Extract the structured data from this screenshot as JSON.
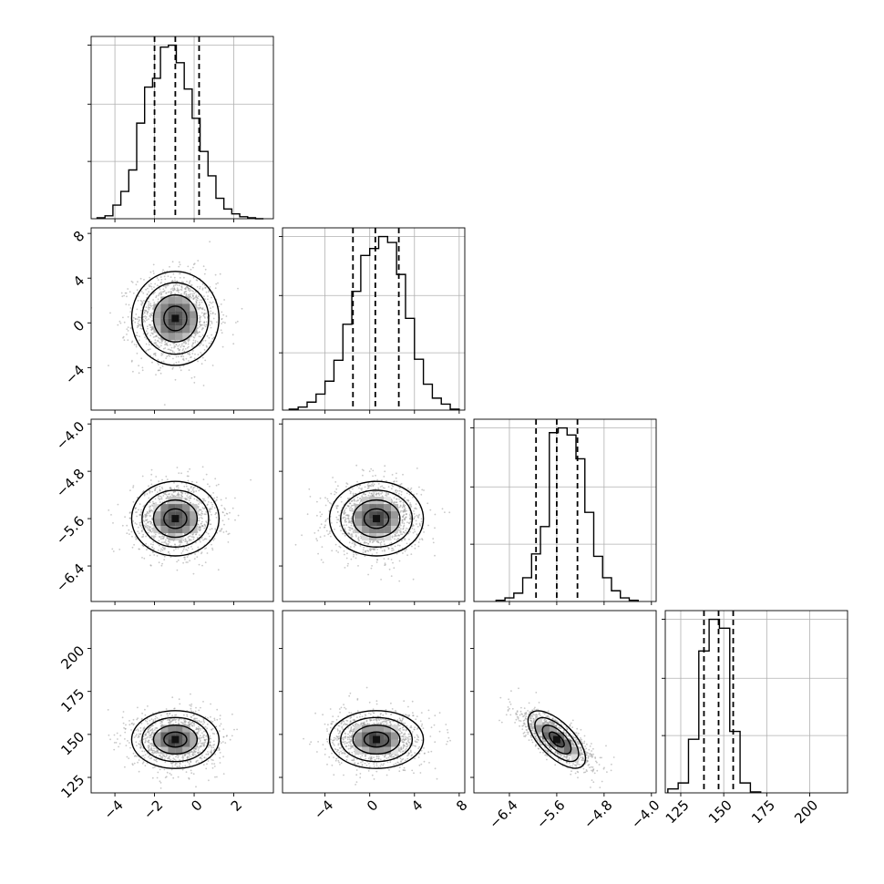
{
  "chart_data": [
    {
      "type": "histogram",
      "panel": "diag-0",
      "xlim": [
        -5.2,
        4.0
      ],
      "xticks": [
        -4,
        -2,
        0,
        2
      ],
      "x": [
        -4.7,
        -4.3,
        -3.9,
        -3.5,
        -3.1,
        -2.7,
        -2.3,
        -1.9,
        -1.5,
        -1.1,
        -0.7,
        -0.3,
        0.1,
        0.5,
        0.9,
        1.3,
        1.7,
        2.1,
        2.5,
        2.9,
        3.3
      ],
      "values": [
        1,
        3,
        14,
        28,
        50,
        98,
        135,
        144,
        176,
        178,
        160,
        133,
        103,
        69,
        44,
        21,
        10,
        5,
        2,
        1,
        0
      ],
      "quantiles": [
        -2.0,
        -0.95,
        0.25
      ],
      "grid": true
    },
    {
      "type": "histogram",
      "panel": "diag-1",
      "xlim": [
        -7.8,
        8.5
      ],
      "xticks": [
        -4,
        0,
        4,
        8
      ],
      "x": [
        -6.8,
        -6.0,
        -5.2,
        -4.4,
        -3.6,
        -2.8,
        -2.0,
        -1.2,
        -0.4,
        0.4,
        1.2,
        2.0,
        2.8,
        3.6,
        4.4,
        5.2,
        6.0,
        6.8,
        7.6
      ],
      "values": [
        1,
        3,
        8,
        16,
        29,
        50,
        86,
        119,
        155,
        162,
        174,
        168,
        136,
        92,
        51,
        26,
        12,
        6,
        1
      ],
      "quantiles": [
        -1.5,
        0.5,
        2.6
      ],
      "grid": true
    },
    {
      "type": "histogram",
      "panel": "diag-2",
      "xlim": [
        -7.0,
        -3.92
      ],
      "xticks": [
        -6.4,
        -5.6,
        -4.8,
        -4.0
      ],
      "x": [
        -6.55,
        -6.4,
        -6.25,
        -6.1,
        -5.95,
        -5.8,
        -5.65,
        -5.5,
        -5.35,
        -5.2,
        -5.05,
        -4.9,
        -4.75,
        -4.6,
        -4.45,
        -4.3
      ],
      "values": [
        1,
        3,
        7,
        20,
        40,
        63,
        142,
        146,
        140,
        120,
        75,
        38,
        20,
        9,
        3,
        1
      ],
      "quantiles": [
        -5.95,
        -5.6,
        -5.25
      ],
      "grid": true
    },
    {
      "type": "histogram",
      "panel": "diag-3",
      "xlim": [
        116,
        222
      ],
      "xticks": [
        125,
        150,
        175,
        200
      ],
      "x": [
        120.5,
        126.5,
        132.5,
        138.5,
        144.5,
        150.5,
        156.5,
        162.5,
        168.5
      ],
      "values": [
        4,
        10,
        54,
        143,
        175,
        166,
        62,
        10,
        1
      ],
      "quantiles": [
        138.5,
        147,
        155.5
      ],
      "grid": true
    },
    {
      "type": "scatter",
      "panel": "r1c0",
      "x_param": 0,
      "y_param": 1,
      "xlim": [
        -5.2,
        4.0
      ],
      "ylim": [
        -7.8,
        8.5
      ],
      "center": [
        -0.95,
        0.4
      ],
      "spread": [
        1.05,
        2.0
      ],
      "correlation": 0.0,
      "yticks": [
        -4,
        0,
        4,
        8
      ]
    },
    {
      "type": "scatter",
      "panel": "r2c0",
      "x_param": 0,
      "y_param": 2,
      "xlim": [
        -5.2,
        4.0
      ],
      "ylim": [
        -7.0,
        -3.92
      ],
      "center": [
        -0.95,
        -5.6
      ],
      "spread": [
        1.05,
        0.3
      ],
      "correlation": 0.0,
      "yticks": [
        -6.4,
        -5.6,
        -4.8,
        -4.0
      ]
    },
    {
      "type": "scatter",
      "panel": "r2c1",
      "x_param": 1,
      "y_param": 2,
      "xlim": [
        -7.8,
        8.5
      ],
      "ylim": [
        -7.0,
        -3.92
      ],
      "center": [
        0.6,
        -5.6
      ],
      "spread": [
        2.0,
        0.3
      ],
      "correlation": 0.0
    },
    {
      "type": "scatter",
      "panel": "r3c0",
      "x_param": 0,
      "y_param": 3,
      "xlim": [
        -5.2,
        4.0
      ],
      "ylim": [
        116,
        222
      ],
      "center": [
        -0.95,
        147
      ],
      "spread": [
        1.05,
        8.0
      ],
      "correlation": 0.0,
      "yticks": [
        125,
        150,
        175,
        200
      ]
    },
    {
      "type": "scatter",
      "panel": "r3c1",
      "x_param": 1,
      "y_param": 3,
      "xlim": [
        -7.8,
        8.5
      ],
      "ylim": [
        116,
        222
      ],
      "center": [
        0.6,
        147
      ],
      "spread": [
        2.0,
        8.0
      ],
      "correlation": 0.0
    },
    {
      "type": "scatter",
      "panel": "r3c2",
      "x_param": 2,
      "y_param": 3,
      "xlim": [
        -7.0,
        -3.92
      ],
      "ylim": [
        116,
        222
      ],
      "center": [
        -5.6,
        147
      ],
      "spread": [
        0.3,
        8.0
      ],
      "correlation": -0.75
    }
  ],
  "colors": {
    "axes": "#000000",
    "grid": "#b0b0b0",
    "points": "#9a9a9a"
  }
}
